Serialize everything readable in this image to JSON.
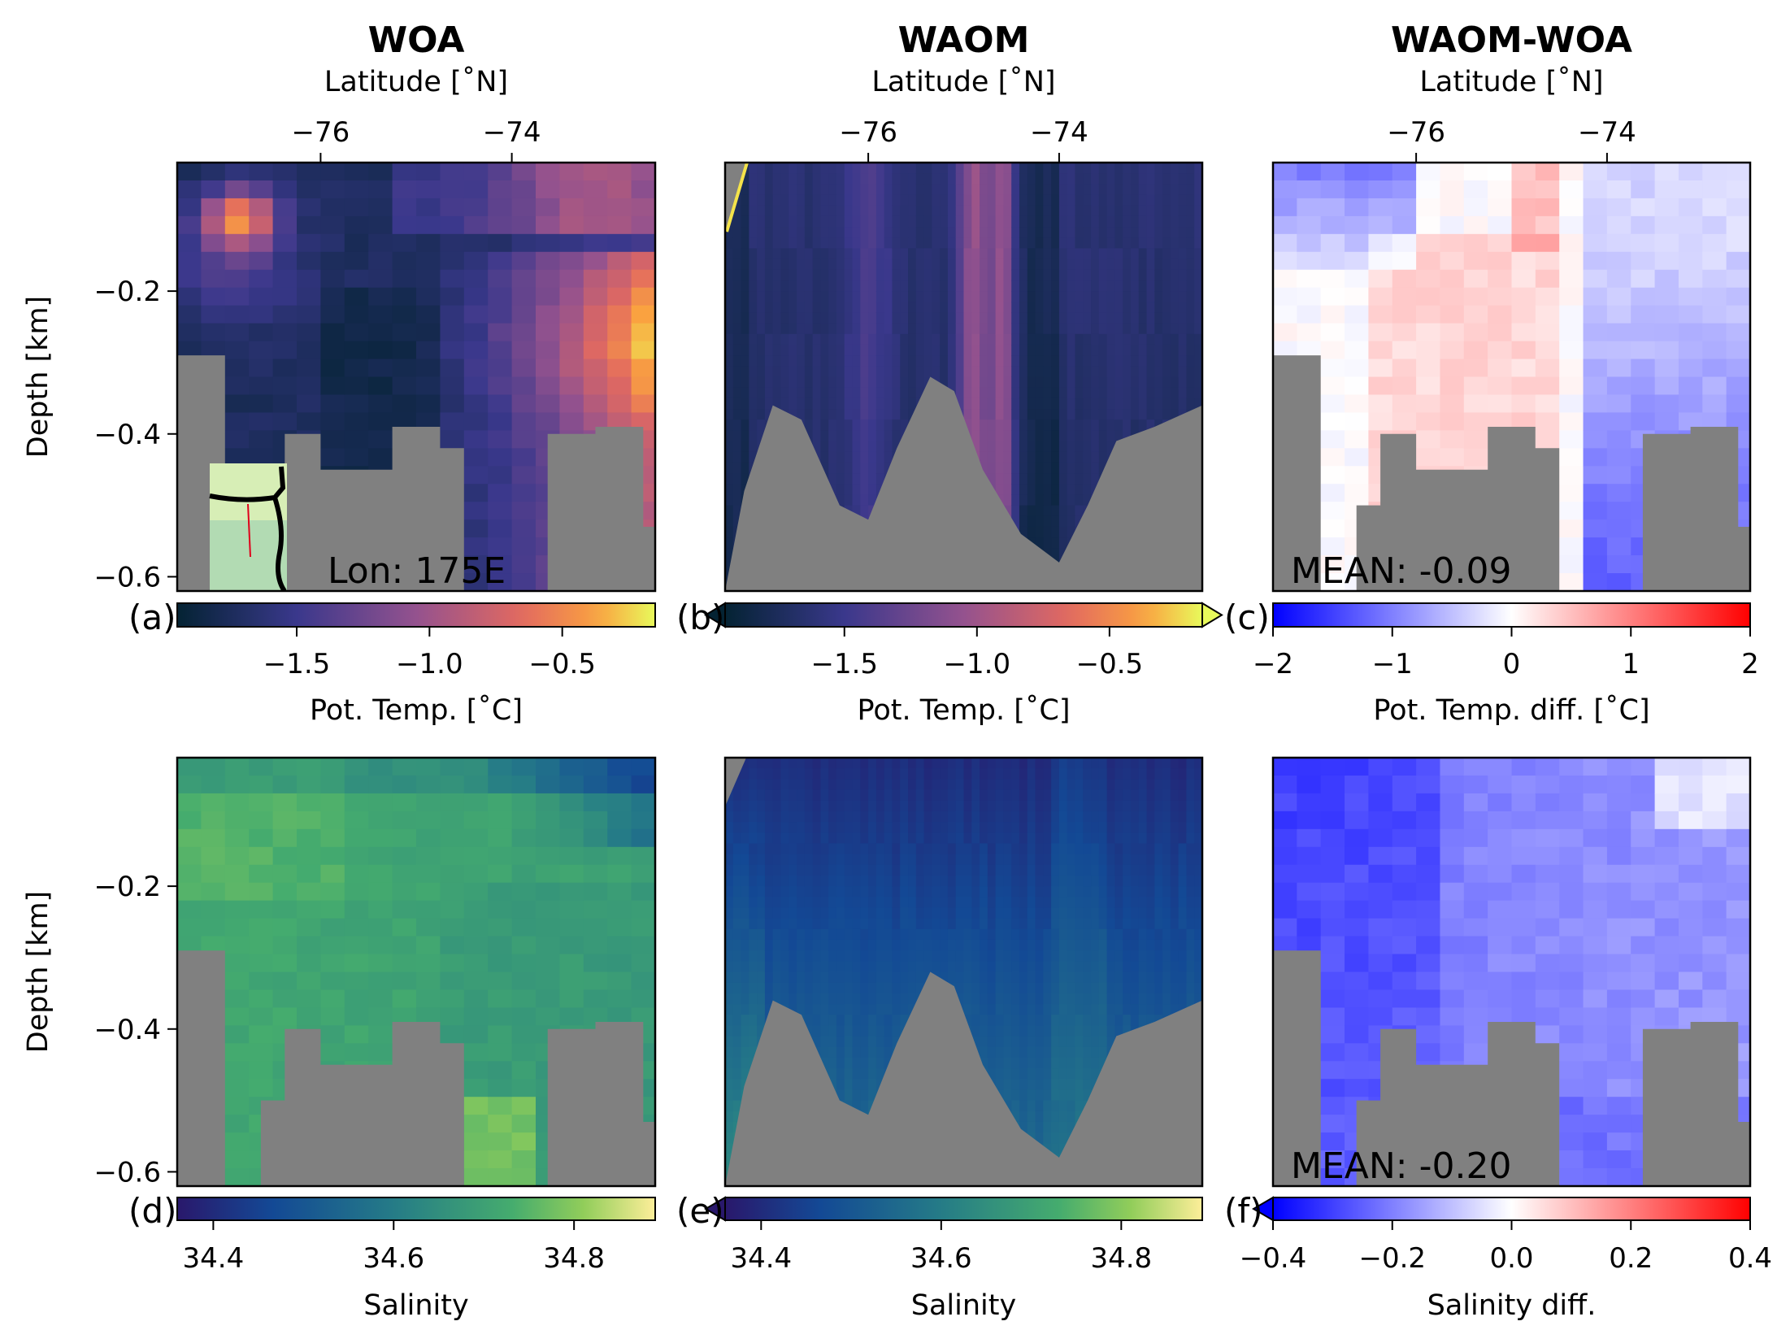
{
  "columns": [
    {
      "title": "WOA"
    },
    {
      "title": "WAOM"
    },
    {
      "title": "WAOM-WOA"
    }
  ],
  "top_axis_label": "Latitude [˚N]",
  "depth_label": "Depth [km]",
  "colors": {
    "land": "#808080",
    "frame": "#000000"
  },
  "chart_data": [
    {
      "type": "heatmap",
      "id": "a",
      "panel_label": "(a)",
      "title": "WOA",
      "variable": "temp",
      "row": 0,
      "col": 0,
      "x_top_label": "Latitude [˚N]",
      "x_ticks": [
        "−76",
        "−74"
      ],
      "x_tick_values": [
        -76,
        -74
      ],
      "xlim": [
        -77.5,
        -72.5
      ],
      "ylabel": "Depth [km]",
      "y_ticks": [
        "−0.2",
        "−0.4",
        "−0.6"
      ],
      "y_tick_values": [
        -0.2,
        -0.4,
        -0.6
      ],
      "ylim": [
        -0.62,
        -0.02
      ],
      "annotation": "Lon: 175E",
      "inset": "map",
      "colorbar": {
        "label": "Pot. Temp. [˚C]",
        "ticks": [
          "−1.5",
          "−1.0",
          "−0.5"
        ],
        "tick_values": [
          -1.5,
          -1.0,
          -0.5
        ],
        "range": [
          -1.95,
          -0.15
        ],
        "cmap": "plasma",
        "extend": "neither"
      }
    },
    {
      "type": "heatmap",
      "id": "b",
      "panel_label": "(b)",
      "title": "WAOM",
      "variable": "temp",
      "row": 0,
      "col": 1,
      "x_top_label": "Latitude [˚N]",
      "x_ticks": [
        "−76",
        "−74"
      ],
      "x_tick_values": [
        -76,
        -74
      ],
      "xlim": [
        -77.5,
        -72.5
      ],
      "ylim": [
        -0.62,
        -0.02
      ],
      "annotation": "",
      "colorbar": {
        "label": "Pot. Temp. [˚C]",
        "ticks": [
          "−1.5",
          "−1.0",
          "−0.5"
        ],
        "tick_values": [
          -1.5,
          -1.0,
          -0.5
        ],
        "range": [
          -1.95,
          -0.15
        ],
        "cmap": "plasma",
        "extend": "both"
      }
    },
    {
      "type": "heatmap",
      "id": "c",
      "panel_label": "(c)",
      "title": "WAOM-WOA",
      "variable": "tempdiff",
      "row": 0,
      "col": 2,
      "x_top_label": "Latitude [˚N]",
      "x_ticks": [
        "−76",
        "−74"
      ],
      "x_tick_values": [
        -76,
        -74
      ],
      "xlim": [
        -77.5,
        -72.5
      ],
      "ylim": [
        -0.62,
        -0.02
      ],
      "annotation": "MEAN: -0.09",
      "colorbar": {
        "label": "Pot. Temp. diff. [˚C]",
        "ticks": [
          "−2",
          "−1",
          "0",
          "1",
          "2"
        ],
        "tick_values": [
          -2,
          -1,
          0,
          1,
          2
        ],
        "range": [
          -2,
          2
        ],
        "cmap": "bwr",
        "extend": "neither"
      }
    },
    {
      "type": "heatmap",
      "id": "d",
      "panel_label": "(d)",
      "title": "",
      "variable": "salt",
      "row": 1,
      "col": 0,
      "ylabel": "Depth [km]",
      "y_ticks": [
        "−0.2",
        "−0.4",
        "−0.6"
      ],
      "y_tick_values": [
        -0.2,
        -0.4,
        -0.6
      ],
      "ylim": [
        -0.62,
        -0.02
      ],
      "xlim": [
        -77.5,
        -72.5
      ],
      "annotation": "",
      "colorbar": {
        "label": "Salinity",
        "ticks": [
          "34.4",
          "34.6",
          "34.8"
        ],
        "tick_values": [
          34.4,
          34.6,
          34.8
        ],
        "range": [
          34.36,
          34.89
        ],
        "cmap": "haline",
        "extend": "neither"
      }
    },
    {
      "type": "heatmap",
      "id": "e",
      "panel_label": "(e)",
      "title": "",
      "variable": "salt",
      "row": 1,
      "col": 1,
      "xlim": [
        -77.5,
        -72.5
      ],
      "ylim": [
        -0.62,
        -0.02
      ],
      "annotation": "",
      "colorbar": {
        "label": "Salinity",
        "ticks": [
          "34.4",
          "34.6",
          "34.8"
        ],
        "tick_values": [
          34.4,
          34.6,
          34.8
        ],
        "range": [
          34.36,
          34.89
        ],
        "cmap": "haline",
        "extend": "min"
      }
    },
    {
      "type": "heatmap",
      "id": "f",
      "panel_label": "(f)",
      "title": "",
      "variable": "saltdiff",
      "row": 1,
      "col": 2,
      "xlim": [
        -77.5,
        -72.5
      ],
      "ylim": [
        -0.62,
        -0.02
      ],
      "annotation": "MEAN: -0.20",
      "colorbar": {
        "label": "Salinity diff.",
        "ticks": [
          "−0.4",
          "−0.2",
          "0.0",
          "0.2",
          "0.4"
        ],
        "tick_values": [
          -0.4,
          -0.2,
          0.0,
          0.2,
          0.4
        ],
        "range": [
          -0.4,
          0.4
        ],
        "cmap": "bwr",
        "extend": "min"
      }
    }
  ]
}
